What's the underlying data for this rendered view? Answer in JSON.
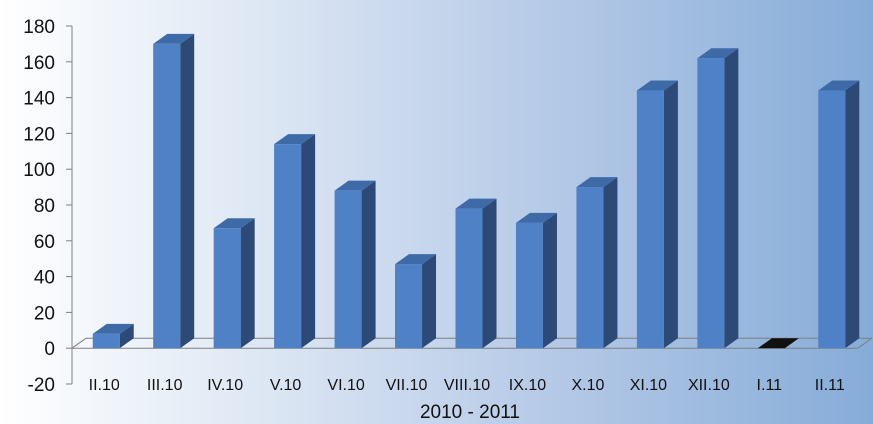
{
  "chart_data": {
    "type": "bar",
    "categories": [
      "II.10",
      "III.10",
      "IV.10",
      "V.10",
      "VI.10",
      "VII.10",
      "VIII.10",
      "IX.10",
      "X.10",
      "XI.10",
      "XII.10",
      "I.11",
      "II.11"
    ],
    "values": [
      8,
      170,
      67,
      114,
      88,
      47,
      78,
      70,
      90,
      144,
      162,
      0,
      144
    ],
    "title": "",
    "xlabel": "2010 - 2011",
    "ylabel": "",
    "ylim": [
      -20,
      180
    ],
    "yticks": [
      -20,
      0,
      20,
      40,
      60,
      80,
      100,
      120,
      140,
      160,
      180
    ],
    "grid": false,
    "legend": "none",
    "colors": {
      "bar_front": "#4f81c7",
      "bar_side": "#2c4a75",
      "bar_top": "#3f6aa8",
      "zero_bar": "#111111",
      "axis": "#7f7f7f"
    }
  }
}
